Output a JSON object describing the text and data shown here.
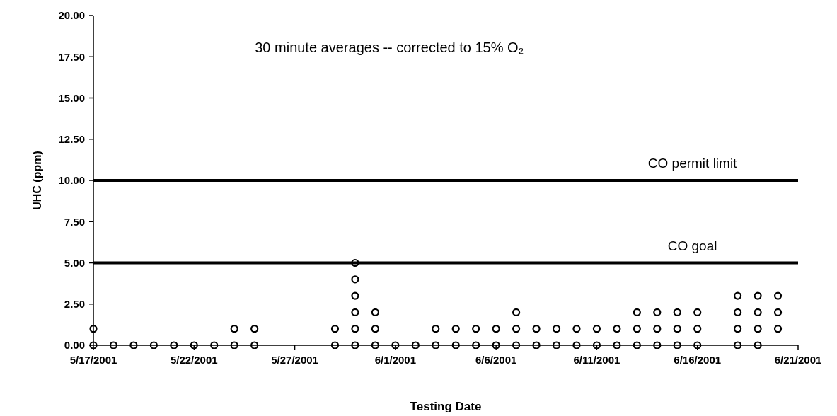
{
  "chart_data": {
    "type": "scatter",
    "title": "30 minute averages -- corrected to 15% O₂",
    "xlabel": "Testing Date",
    "ylabel": "UHC (ppm)",
    "series": [
      {
        "color": "#000000",
        "x": [
          "2001-05-17",
          "2001-05-17",
          "2001-05-18",
          "2001-05-19",
          "2001-05-20",
          "2001-05-21",
          "2001-05-22",
          "2001-05-23",
          "2001-05-24",
          "2001-05-24",
          "2001-05-25",
          "2001-05-25",
          "2001-05-29",
          "2001-05-29",
          "2001-05-30",
          "2001-05-30",
          "2001-05-30",
          "2001-05-30",
          "2001-05-30",
          "2001-05-30",
          "2001-05-31",
          "2001-05-31",
          "2001-05-31",
          "2001-06-01",
          "2001-06-02",
          "2001-06-03",
          "2001-06-03",
          "2001-06-04",
          "2001-06-04",
          "2001-06-05",
          "2001-06-05",
          "2001-06-06",
          "2001-06-06",
          "2001-06-07",
          "2001-06-07",
          "2001-06-07",
          "2001-06-08",
          "2001-06-08",
          "2001-06-09",
          "2001-06-09",
          "2001-06-10",
          "2001-06-10",
          "2001-06-11",
          "2001-06-11",
          "2001-06-12",
          "2001-06-12",
          "2001-06-13",
          "2001-06-13",
          "2001-06-13",
          "2001-06-14",
          "2001-06-14",
          "2001-06-14",
          "2001-06-15",
          "2001-06-15",
          "2001-06-15",
          "2001-06-16",
          "2001-06-16",
          "2001-06-16",
          "2001-06-18",
          "2001-06-18",
          "2001-06-18",
          "2001-06-18",
          "2001-06-19",
          "2001-06-19",
          "2001-06-19",
          "2001-06-19",
          "2001-06-20",
          "2001-06-20",
          "2001-06-20"
        ],
        "values": [
          0,
          1,
          0,
          0,
          0,
          0,
          0,
          0,
          0,
          1,
          0,
          1,
          0,
          1,
          0,
          1,
          2,
          3,
          4,
          5,
          0,
          1,
          2,
          0,
          0,
          0,
          1,
          0,
          1,
          0,
          1,
          0,
          1,
          0,
          1,
          2,
          0,
          1,
          0,
          1,
          0,
          1,
          0,
          1,
          0,
          1,
          0,
          1,
          2,
          0,
          1,
          2,
          0,
          1,
          2,
          0,
          1,
          2,
          0,
          1,
          2,
          3,
          0,
          1,
          2,
          3,
          1,
          2,
          3
        ]
      }
    ],
    "xlim": [
      "2001-05-17",
      "2001-06-21"
    ],
    "xticks": [
      {
        "value": "2001-05-17",
        "label": "5/17/2001"
      },
      {
        "value": "2001-05-22",
        "label": "5/22/2001"
      },
      {
        "value": "2001-05-27",
        "label": "5/27/2001"
      },
      {
        "value": "2001-06-01",
        "label": "6/1/2001"
      },
      {
        "value": "2001-06-06",
        "label": "6/6/2001"
      },
      {
        "value": "2001-06-11",
        "label": "6/11/2001"
      },
      {
        "value": "2001-06-16",
        "label": "6/16/2001"
      },
      {
        "value": "2001-06-21",
        "label": "6/21/2001"
      }
    ],
    "ylim": [
      0,
      20
    ],
    "yticks": [
      {
        "value": 0,
        "label": "0.00"
      },
      {
        "value": 2.5,
        "label": "2.50"
      },
      {
        "value": 5,
        "label": "5.00"
      },
      {
        "value": 7.5,
        "label": "7.50"
      },
      {
        "value": 10,
        "label": "10.00"
      },
      {
        "value": 12.5,
        "label": "12.50"
      },
      {
        "value": 15,
        "label": "15.00"
      },
      {
        "value": 17.5,
        "label": "17.50"
      },
      {
        "value": 20,
        "label": "20.00"
      }
    ],
    "ref_lines": [
      {
        "axis": "y",
        "value": 10,
        "label": "CO permit limit",
        "color": "#000000"
      },
      {
        "axis": "y",
        "value": 5,
        "label": "CO goal",
        "color": "#000000"
      }
    ],
    "marker": "circle"
  }
}
